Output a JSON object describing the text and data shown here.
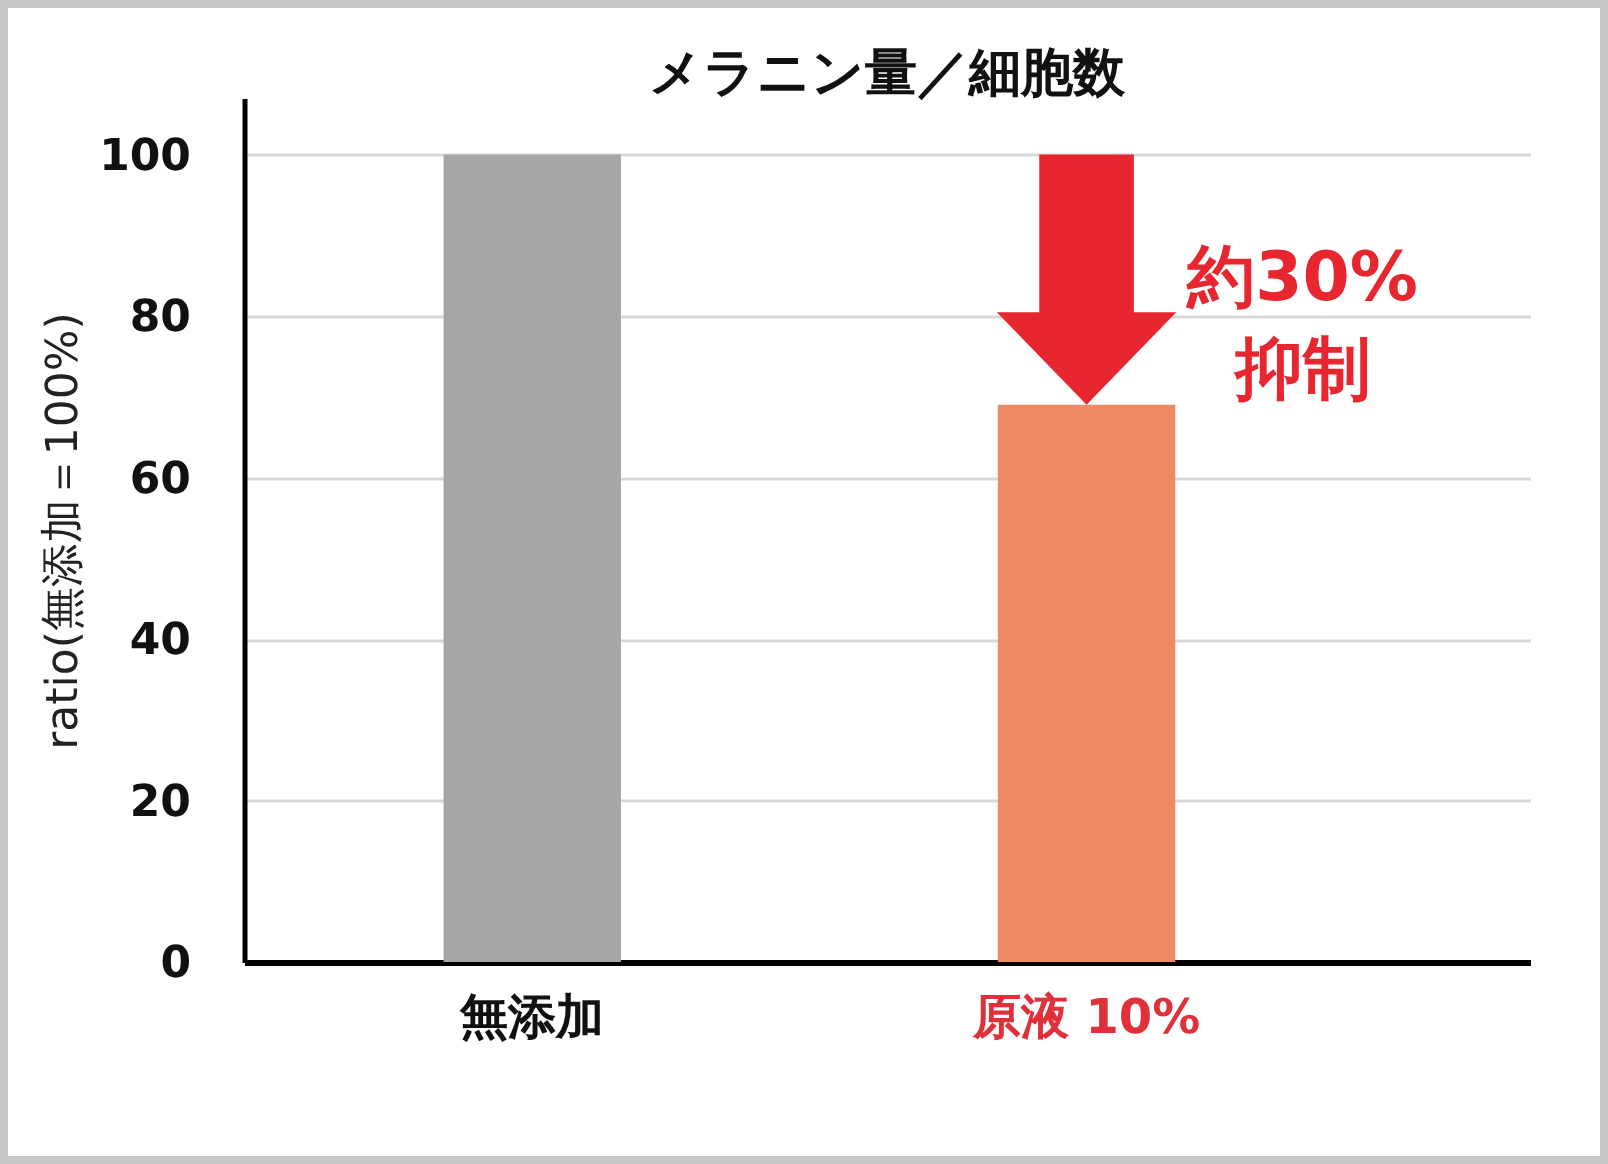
{
  "chart_data": {
    "type": "bar",
    "title": "メラニン量／細胞数",
    "ylabel": "ratio(無添加＝100%)",
    "categories": [
      "無添加",
      "原液 10%"
    ],
    "values": [
      100,
      69
    ],
    "colors": [
      "#a6a6a6",
      "#ef8a62"
    ],
    "ylim": [
      0,
      107
    ],
    "yticks": [
      0,
      20,
      40,
      60,
      80,
      100
    ],
    "grid": "y",
    "annotations": [
      "約30%\n抑制"
    ]
  }
}
